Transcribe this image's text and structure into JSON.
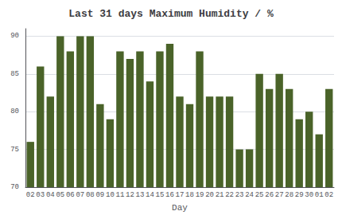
{
  "chart_data": {
    "type": "bar",
    "title": "Last 31 days Maximum Humidity / %",
    "xlabel": "Day",
    "categories": [
      "02",
      "03",
      "04",
      "05",
      "06",
      "07",
      "08",
      "09",
      "10",
      "11",
      "12",
      "13",
      "14",
      "15",
      "16",
      "17",
      "18",
      "19",
      "20",
      "21",
      "22",
      "23",
      "24",
      "25",
      "26",
      "27",
      "28",
      "29",
      "30",
      "01",
      "02"
    ],
    "values": [
      76,
      86,
      82,
      90,
      88,
      90,
      90,
      81,
      79,
      88,
      87,
      88,
      84,
      88,
      89,
      82,
      81,
      88,
      82,
      82,
      82,
      75,
      75,
      85,
      83,
      85,
      83,
      79,
      80,
      77,
      83
    ],
    "color": "#4a6329",
    "ylim": [
      70,
      91
    ],
    "yticks": [
      70,
      75,
      80,
      85,
      90
    ],
    "grid": true
  }
}
